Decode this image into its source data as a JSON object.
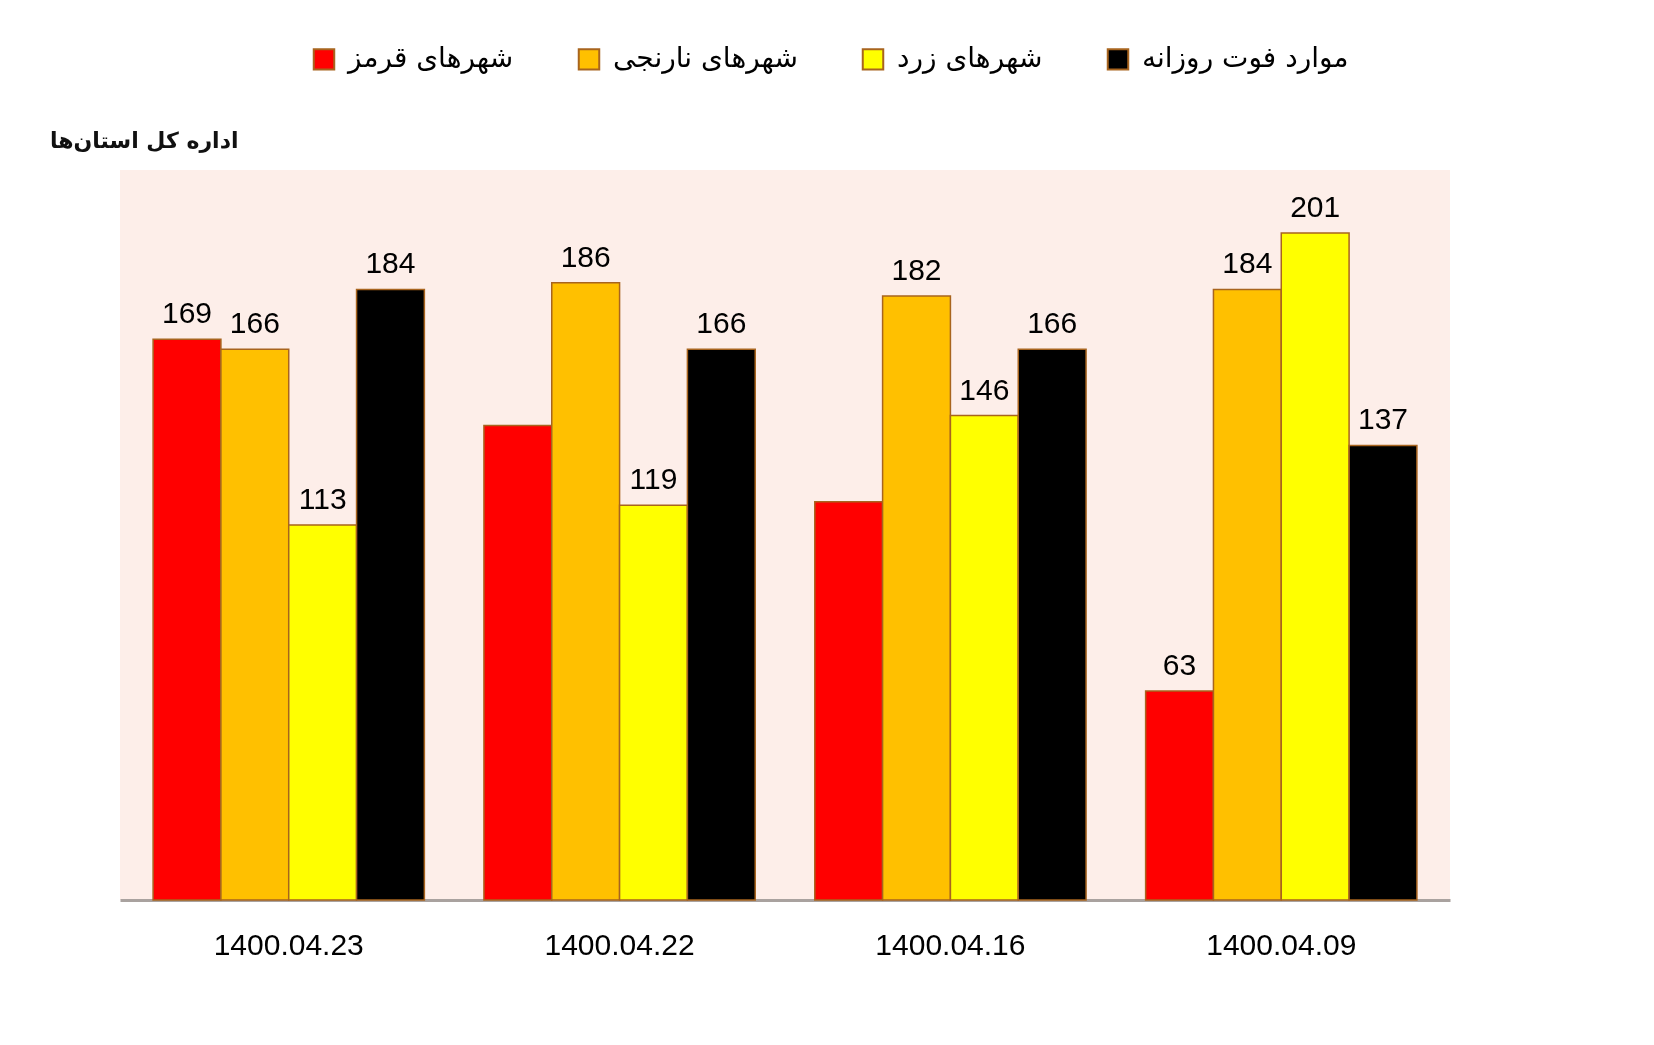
{
  "chart_data": {
    "type": "bar",
    "categories": [
      "1400.04.23",
      "1400.04.22",
      "1400.04.16",
      "1400.04.09"
    ],
    "series": [
      {
        "name": "شهرهای قرمز",
        "color": "#ff0000",
        "values": [
          169,
          143,
          120,
          63
        ],
        "value_labels": [
          "169",
          null,
          null,
          "63"
        ]
      },
      {
        "name": "شهرهای نارنجی",
        "color": "#ffc000",
        "values": [
          166,
          186,
          182,
          184
        ],
        "value_labels": [
          "166",
          "186",
          "182",
          "184"
        ]
      },
      {
        "name": "شهرهای زرد",
        "color": "#ffff00",
        "values": [
          113,
          119,
          146,
          201
        ],
        "value_labels": [
          "113",
          "119",
          "146",
          "201"
        ]
      },
      {
        "name": "موارد فوت روزانه",
        "color": "#000000",
        "values": [
          184,
          166,
          166,
          137
        ],
        "value_labels": [
          "184",
          "166",
          "166",
          "137"
        ]
      }
    ],
    "legend": "top",
    "tick_labels": "x",
    "annotations": [
      "اداره کل استان‌ها"
    ]
  }
}
